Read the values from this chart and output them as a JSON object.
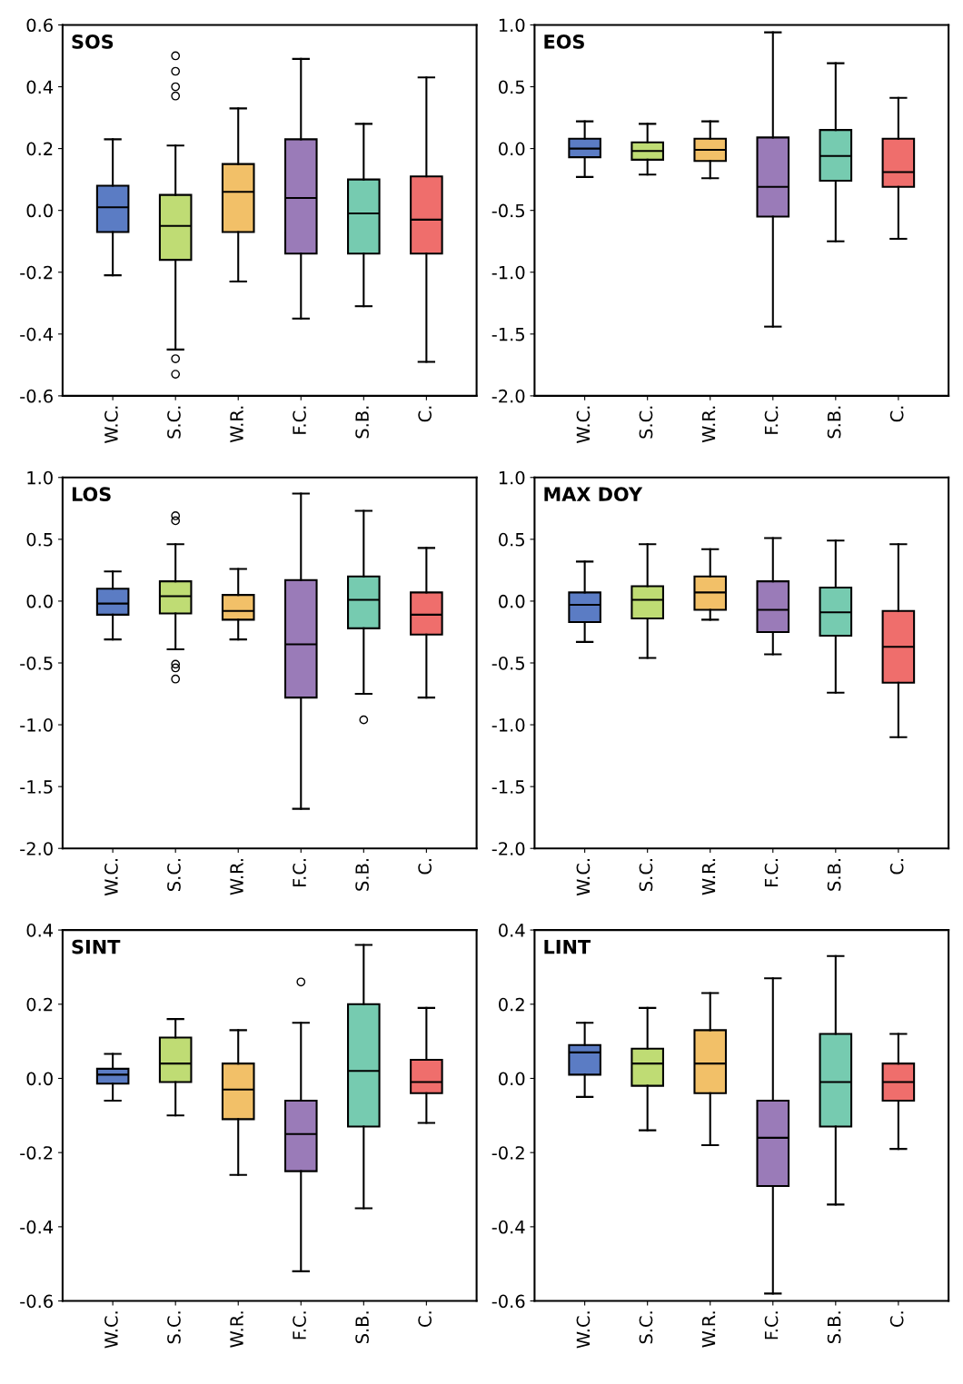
{
  "chart_data": [
    {
      "type": "box",
      "title": "SOS",
      "categories": [
        "W.C.",
        "S.C.",
        "W.R.",
        "F.C.",
        "S.B.",
        "C."
      ],
      "colors": [
        "#5b7cc4",
        "#bfdc74",
        "#f2c068",
        "#9a7bb8",
        "#76cbb0",
        "#ef6e6c"
      ],
      "ylim": [
        -0.6,
        0.6
      ],
      "yticks": [
        {
          "value": -0.6,
          "label": "-0.6"
        },
        {
          "value": -0.4,
          "label": "-0.4"
        },
        {
          "value": -0.2,
          "label": "-0.2"
        },
        {
          "value": 0,
          "label": "0.0"
        },
        {
          "value": 0.2,
          "label": "0.2"
        },
        {
          "value": 0.4,
          "label": "0.4"
        },
        {
          "value": 0.6,
          "label": "0.6"
        }
      ],
      "boxes": [
        {
          "low": -0.21,
          "q1": -0.07,
          "median": 0.01,
          "q3": 0.08,
          "high": 0.23
        },
        {
          "low": -0.45,
          "q1": -0.16,
          "median": -0.05,
          "q3": 0.05,
          "high": 0.21,
          "outliers": [
            0.5,
            0.45,
            0.4,
            0.37,
            -0.48,
            -0.53
          ]
        },
        {
          "low": -0.23,
          "q1": -0.07,
          "median": 0.06,
          "q3": 0.15,
          "high": 0.33
        },
        {
          "low": -0.35,
          "q1": -0.14,
          "median": 0.04,
          "q3": 0.23,
          "high": 0.49
        },
        {
          "low": -0.31,
          "q1": -0.14,
          "median": -0.01,
          "q3": 0.1,
          "high": 0.28
        },
        {
          "low": -0.49,
          "q1": -0.14,
          "median": -0.03,
          "q3": 0.11,
          "high": 0.43
        }
      ]
    },
    {
      "type": "box",
      "title": "EOS",
      "categories": [
        "W.C.",
        "S.C.",
        "W.R.",
        "F.C.",
        "S.B.",
        "C."
      ],
      "colors": [
        "#5b7cc4",
        "#bfdc74",
        "#f2c068",
        "#9a7bb8",
        "#76cbb0",
        "#ef6e6c"
      ],
      "ylim": [
        -2.0,
        1.0
      ],
      "yticks": [
        {
          "value": -2,
          "label": "-2.0"
        },
        {
          "value": -1.5,
          "label": "-1.5"
        },
        {
          "value": -1,
          "label": "-1.0"
        },
        {
          "value": -0.5,
          "label": "-0.5"
        },
        {
          "value": 0,
          "label": "0.0"
        },
        {
          "value": 0.5,
          "label": "0.5"
        },
        {
          "value": 1,
          "label": "1.0"
        }
      ],
      "boxes": [
        {
          "low": -0.23,
          "q1": -0.07,
          "median": 0.0,
          "q3": 0.08,
          "high": 0.22
        },
        {
          "low": -0.21,
          "q1": -0.09,
          "median": -0.02,
          "q3": 0.05,
          "high": 0.2
        },
        {
          "low": -0.24,
          "q1": -0.1,
          "median": -0.01,
          "q3": 0.08,
          "high": 0.22
        },
        {
          "low": -1.44,
          "q1": -0.55,
          "median": -0.31,
          "q3": 0.09,
          "high": 0.94
        },
        {
          "low": -0.75,
          "q1": -0.26,
          "median": -0.06,
          "q3": 0.15,
          "high": 0.69
        },
        {
          "low": -0.73,
          "q1": -0.31,
          "median": -0.19,
          "q3": 0.08,
          "high": 0.41
        }
      ]
    },
    {
      "type": "box",
      "title": "LOS",
      "categories": [
        "W.C.",
        "S.C.",
        "W.R.",
        "F.C.",
        "S.B.",
        "C."
      ],
      "colors": [
        "#5b7cc4",
        "#bfdc74",
        "#f2c068",
        "#9a7bb8",
        "#76cbb0",
        "#ef6e6c"
      ],
      "ylim": [
        -2.0,
        1.0
      ],
      "yticks": [
        {
          "value": -2,
          "label": "-2.0"
        },
        {
          "value": -1.5,
          "label": "-1.5"
        },
        {
          "value": -1,
          "label": "-1.0"
        },
        {
          "value": -0.5,
          "label": "-0.5"
        },
        {
          "value": 0,
          "label": "0.0"
        },
        {
          "value": 0.5,
          "label": "0.5"
        },
        {
          "value": 1,
          "label": "1.0"
        }
      ],
      "boxes": [
        {
          "low": -0.31,
          "q1": -0.11,
          "median": -0.02,
          "q3": 0.1,
          "high": 0.24
        },
        {
          "low": -0.39,
          "q1": -0.1,
          "median": 0.04,
          "q3": 0.16,
          "high": 0.46,
          "outliers": [
            0.69,
            0.65,
            -0.51,
            -0.54,
            -0.63
          ]
        },
        {
          "low": -0.31,
          "q1": -0.15,
          "median": -0.08,
          "q3": 0.05,
          "high": 0.26
        },
        {
          "low": -1.68,
          "q1": -0.78,
          "median": -0.35,
          "q3": 0.17,
          "high": 0.87
        },
        {
          "low": -0.75,
          "q1": -0.22,
          "median": 0.01,
          "q3": 0.2,
          "high": 0.73,
          "outliers": [
            -0.96
          ]
        },
        {
          "low": -0.78,
          "q1": -0.27,
          "median": -0.11,
          "q3": 0.07,
          "high": 0.43
        }
      ]
    },
    {
      "type": "box",
      "title": "MAX DOY",
      "categories": [
        "W.C.",
        "S.C.",
        "W.R.",
        "F.C.",
        "S.B.",
        "C."
      ],
      "colors": [
        "#5b7cc4",
        "#bfdc74",
        "#f2c068",
        "#9a7bb8",
        "#76cbb0",
        "#ef6e6c"
      ],
      "ylim": [
        -2.0,
        1.0
      ],
      "yticks": [
        {
          "value": -2,
          "label": "-2.0"
        },
        {
          "value": -1.5,
          "label": "-1.5"
        },
        {
          "value": -1,
          "label": "-1.0"
        },
        {
          "value": -0.5,
          "label": "-0.5"
        },
        {
          "value": 0,
          "label": "0.0"
        },
        {
          "value": 0.5,
          "label": "0.5"
        },
        {
          "value": 1,
          "label": "1.0"
        }
      ],
      "boxes": [
        {
          "low": -0.33,
          "q1": -0.17,
          "median": -0.03,
          "q3": 0.07,
          "high": 0.32
        },
        {
          "low": -0.46,
          "q1": -0.14,
          "median": 0.01,
          "q3": 0.12,
          "high": 0.46
        },
        {
          "low": -0.15,
          "q1": -0.07,
          "median": 0.07,
          "q3": 0.2,
          "high": 0.42
        },
        {
          "low": -0.43,
          "q1": -0.25,
          "median": -0.07,
          "q3": 0.16,
          "high": 0.51
        },
        {
          "low": -0.74,
          "q1": -0.28,
          "median": -0.09,
          "q3": 0.11,
          "high": 0.49
        },
        {
          "low": -1.1,
          "q1": -0.66,
          "median": -0.37,
          "q3": -0.08,
          "high": 0.46
        }
      ]
    },
    {
      "type": "box",
      "title": "SINT",
      "categories": [
        "W.C.",
        "S.C.",
        "W.R.",
        "F.C.",
        "S.B.",
        "C."
      ],
      "colors": [
        "#5b7cc4",
        "#bfdc74",
        "#f2c068",
        "#9a7bb8",
        "#76cbb0",
        "#ef6e6c"
      ],
      "ylim": [
        -0.6,
        0.4
      ],
      "yticks": [
        {
          "value": -0.6,
          "label": "-0.6"
        },
        {
          "value": -0.4,
          "label": "-0.4"
        },
        {
          "value": -0.2,
          "label": "-0.2"
        },
        {
          "value": 0,
          "label": "0.0"
        },
        {
          "value": 0.2,
          "label": "0.2"
        },
        {
          "value": 0.4,
          "label": "0.4"
        }
      ],
      "boxes": [
        {
          "low": -0.06,
          "q1": -0.014,
          "median": 0.01,
          "q3": 0.026,
          "high": 0.066
        },
        {
          "low": -0.1,
          "q1": -0.01,
          "median": 0.04,
          "q3": 0.11,
          "high": 0.16
        },
        {
          "low": -0.26,
          "q1": -0.11,
          "median": -0.03,
          "q3": 0.04,
          "high": 0.13
        },
        {
          "low": -0.52,
          "q1": -0.25,
          "median": -0.15,
          "q3": -0.06,
          "high": 0.15,
          "outliers": [
            0.26
          ]
        },
        {
          "low": -0.35,
          "q1": -0.13,
          "median": 0.02,
          "q3": 0.2,
          "high": 0.36
        },
        {
          "low": -0.12,
          "q1": -0.04,
          "median": -0.01,
          "q3": 0.05,
          "high": 0.19
        }
      ]
    },
    {
      "type": "box",
      "title": "LINT",
      "categories": [
        "W.C.",
        "S.C.",
        "W.R.",
        "F.C.",
        "S.B.",
        "C."
      ],
      "colors": [
        "#5b7cc4",
        "#bfdc74",
        "#f2c068",
        "#9a7bb8",
        "#76cbb0",
        "#ef6e6c"
      ],
      "ylim": [
        -0.6,
        0.4
      ],
      "yticks": [
        {
          "value": -0.6,
          "label": "-0.6"
        },
        {
          "value": -0.4,
          "label": "-0.4"
        },
        {
          "value": -0.2,
          "label": "-0.2"
        },
        {
          "value": 0,
          "label": "0.0"
        },
        {
          "value": 0.2,
          "label": "0.2"
        },
        {
          "value": 0.4,
          "label": "0.4"
        }
      ],
      "boxes": [
        {
          "low": -0.05,
          "q1": 0.01,
          "median": 0.07,
          "q3": 0.09,
          "high": 0.15
        },
        {
          "low": -0.14,
          "q1": -0.02,
          "median": 0.04,
          "q3": 0.08,
          "high": 0.19
        },
        {
          "low": -0.18,
          "q1": -0.04,
          "median": 0.04,
          "q3": 0.13,
          "high": 0.23
        },
        {
          "low": -0.58,
          "q1": -0.29,
          "median": -0.16,
          "q3": -0.06,
          "high": 0.27
        },
        {
          "low": -0.34,
          "q1": -0.13,
          "median": -0.01,
          "q3": 0.12,
          "high": 0.33
        },
        {
          "low": -0.19,
          "q1": -0.06,
          "median": -0.01,
          "q3": 0.04,
          "high": 0.12
        }
      ]
    }
  ]
}
